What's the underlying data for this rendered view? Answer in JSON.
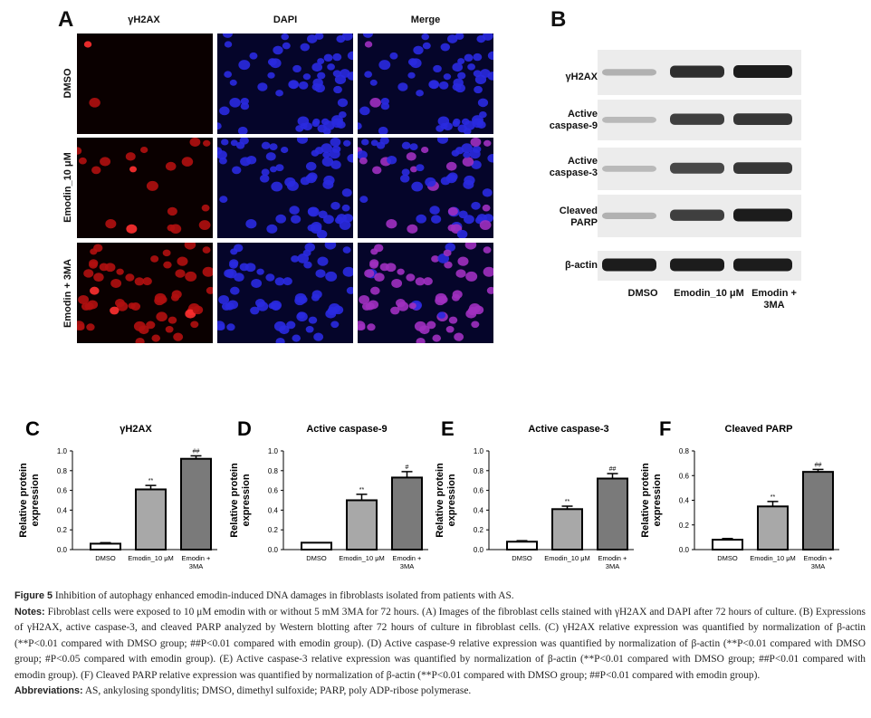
{
  "panel_a": {
    "label": "A",
    "columns": [
      "γH2AX",
      "DAPI",
      "Merge"
    ],
    "rows": [
      "DMSO",
      "Emodin_10 μM",
      "Emodin + 3MA"
    ]
  },
  "panel_b": {
    "label": "B",
    "bands": [
      "γH2AX",
      "Active caspase-9",
      "Active caspase-3",
      "Cleaved PARP",
      "β-actin"
    ],
    "lanes": [
      "DMSO",
      "Emodin_10 μM",
      "Emodin + 3MA"
    ]
  },
  "chart_data": [
    {
      "panel": "C",
      "type": "bar",
      "title": "γH2AX",
      "ylabel": "Relative protein expression",
      "categories": [
        "DMSO",
        "Emodin_10 μM",
        "Emodin + 3MA"
      ],
      "values": [
        0.06,
        0.61,
        0.92
      ],
      "errors": [
        0.01,
        0.04,
        0.03
      ],
      "annotations": [
        "",
        "**",
        "##"
      ],
      "ylim": [
        0,
        1.0
      ],
      "yticks": [
        "0.0",
        "0.2",
        "0.4",
        "0.6",
        "0.8",
        "1.0"
      ],
      "bar_colors": [
        "#ffffff",
        "#a8a8a8",
        "#7a7a7a"
      ],
      "grid": false
    },
    {
      "panel": "D",
      "type": "bar",
      "title": "Active caspase-9",
      "ylabel": "Relative protein expression",
      "categories": [
        "DMSO",
        "Emodin_10 μM",
        "Emodin + 3MA"
      ],
      "values": [
        0.07,
        0.5,
        0.73
      ],
      "errors": [
        0.0,
        0.06,
        0.06
      ],
      "annotations": [
        "",
        "**",
        "#"
      ],
      "ylim": [
        0,
        1.0
      ],
      "yticks": [
        "0.0",
        "0.2",
        "0.4",
        "0.6",
        "0.8",
        "1.0"
      ],
      "bar_colors": [
        "#ffffff",
        "#a8a8a8",
        "#7a7a7a"
      ],
      "grid": false
    },
    {
      "panel": "E",
      "type": "bar",
      "title": "Active caspase-3",
      "ylabel": "Relative protein expression",
      "categories": [
        "DMSO",
        "Emodin_10 μM",
        "Emodin + 3MA"
      ],
      "values": [
        0.08,
        0.41,
        0.72
      ],
      "errors": [
        0.01,
        0.03,
        0.05
      ],
      "annotations": [
        "",
        "**",
        "##"
      ],
      "ylim": [
        0,
        1.0
      ],
      "yticks": [
        "0.0",
        "0.2",
        "0.4",
        "0.6",
        "0.8",
        "1.0"
      ],
      "bar_colors": [
        "#ffffff",
        "#a8a8a8",
        "#7a7a7a"
      ],
      "grid": false
    },
    {
      "panel": "F",
      "type": "bar",
      "title": "Cleaved PARP",
      "ylabel": "Relative protein expression",
      "categories": [
        "DMSO",
        "Emodin_10 μM",
        "Emodin + 3MA"
      ],
      "values": [
        0.08,
        0.35,
        0.63
      ],
      "errors": [
        0.01,
        0.04,
        0.02
      ],
      "annotations": [
        "",
        "**",
        "##"
      ],
      "ylim": [
        0,
        0.8
      ],
      "yticks": [
        "0.0",
        "0.2",
        "0.4",
        "0.6",
        "0.8"
      ],
      "bar_colors": [
        "#ffffff",
        "#a8a8a8",
        "#7a7a7a"
      ],
      "grid": false
    }
  ],
  "caption": {
    "figure_label": "Figure 5",
    "title": "Inhibition of autophagy enhanced emodin-induced DNA damages in fibroblasts isolated from patients with AS.",
    "notes_label": "Notes:",
    "notes": "Fibroblast cells were exposed to 10 μM emodin with or without 5 mM 3MA for 72 hours. (A) Images of the fibroblast cells stained with γH2AX and DAPI after 72 hours of culture. (B) Expressions of γH2AX, active caspase-3, and cleaved PARP analyzed by Western blotting after 72 hours of culture in fibroblast cells. (C) γH2AX relative expression was quantified by normalization of β-actin (**P<0.01 compared with DMSO group; ##P<0.01 compared with emodin group). (D) Active caspase-9 relative expression was quantified by normalization of β-actin (**P<0.01 compared with DMSO group; #P<0.05 compared with emodin group). (E) Active caspase-3 relative expression was quantified by normalization of β-actin (**P<0.01 compared with DMSO group; ##P<0.01 compared with emodin group). (F) Cleaved PARP relative expression was quantified by normalization of β-actin (**P<0.01 compared with DMSO group; ##P<0.01 compared with emodin group).",
    "abbreviations_label": "Abbreviations:",
    "abbreviations": "AS, ankylosing spondylitis; DMSO, dimethyl sulfoxide; PARP, poly ADP-ribose polymerase."
  }
}
